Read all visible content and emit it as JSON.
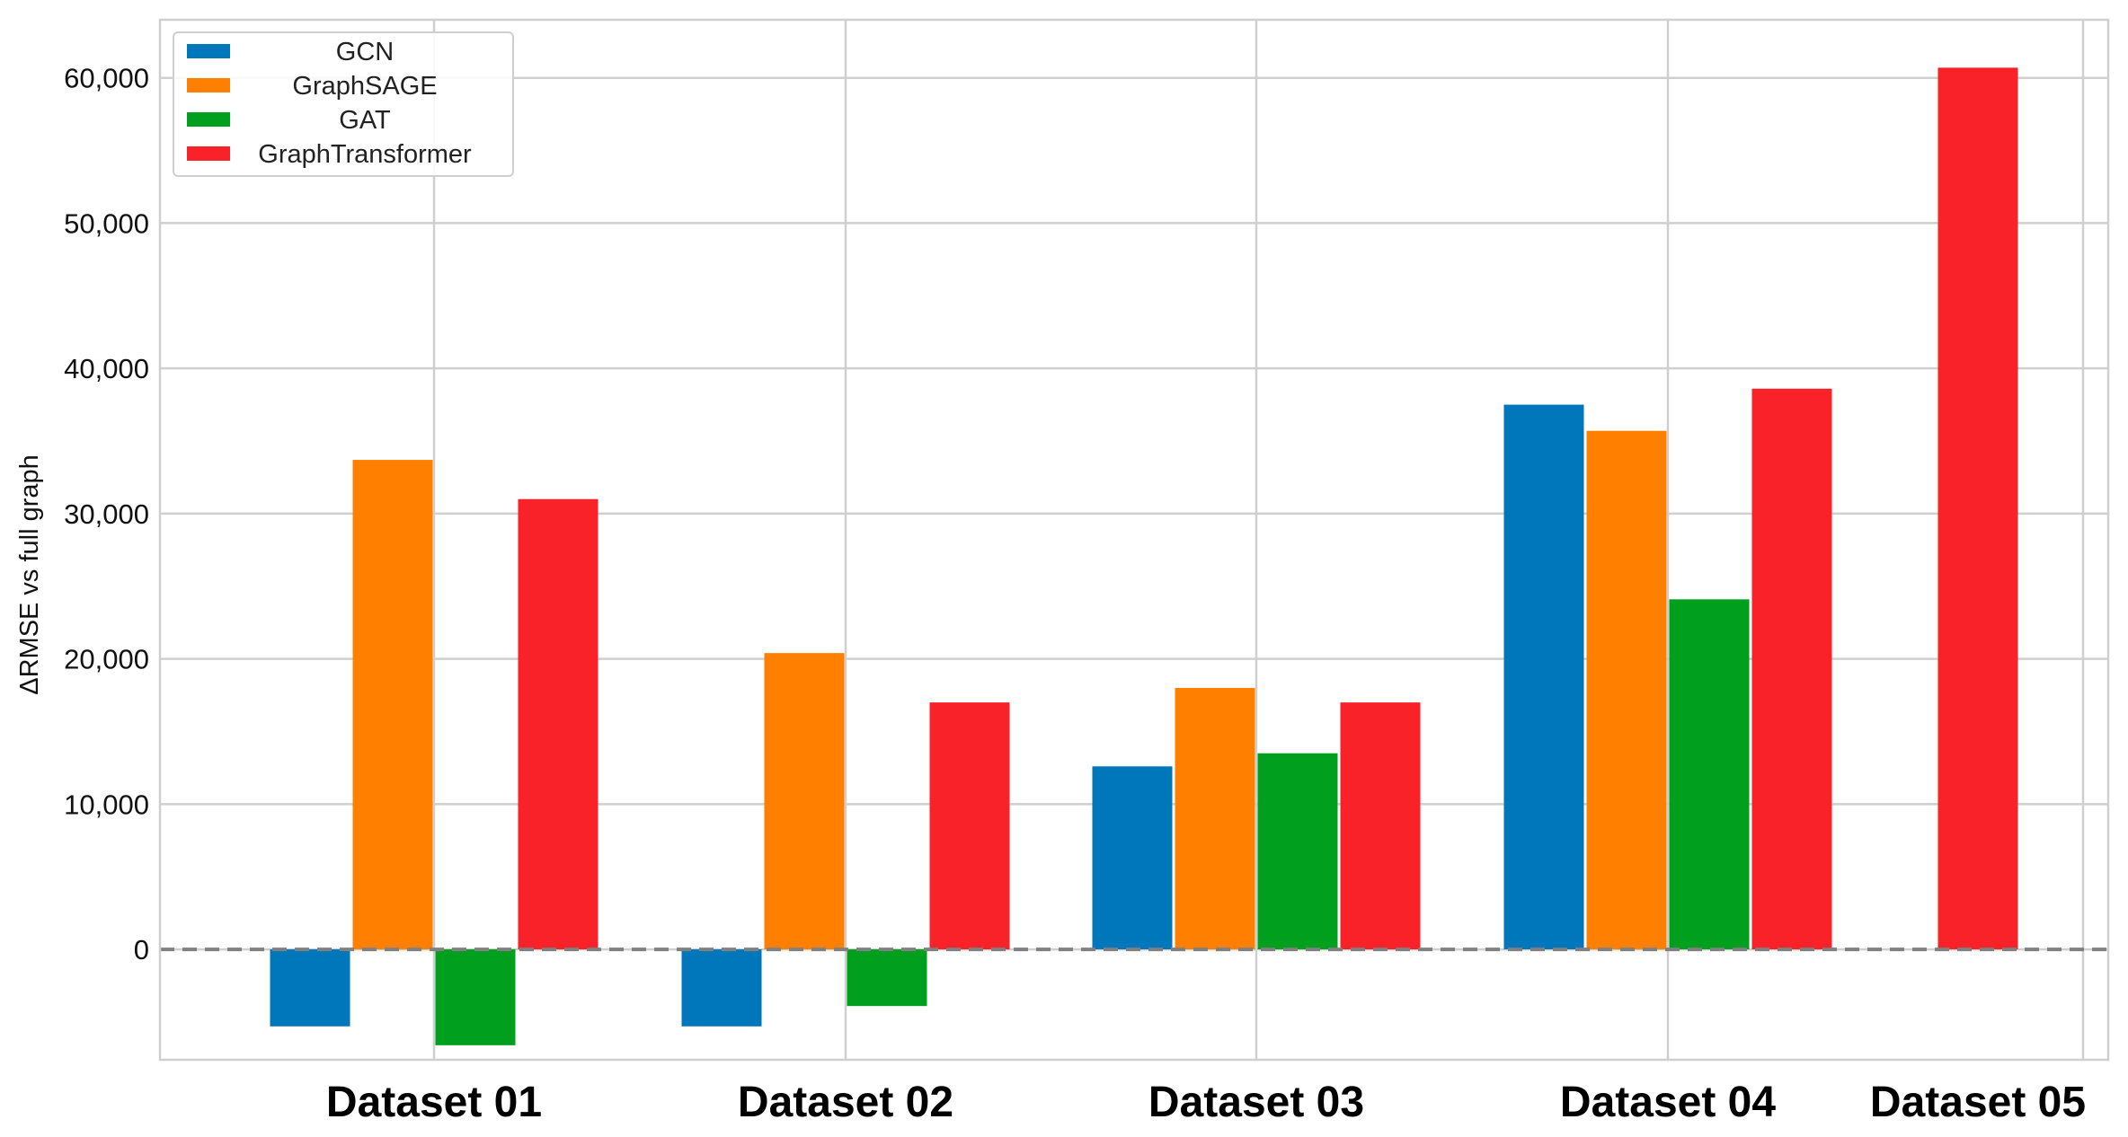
{
  "chart_data": {
    "type": "bar",
    "title": "",
    "xlabel": "",
    "ylabel": "ΔRMSE vs full graph",
    "categories": [
      "Dataset 01",
      "Dataset 02",
      "Dataset 03",
      "Dataset 04",
      "Dataset 05"
    ],
    "series": [
      {
        "name": "GCN",
        "color": "#0077bb",
        "values": [
          -5300,
          -5300,
          12600,
          37500,
          null
        ]
      },
      {
        "name": "GraphSAGE",
        "color": "#ff8000",
        "values": [
          33700,
          20400,
          18000,
          35700,
          null
        ]
      },
      {
        "name": "GAT",
        "color": "#00a01e",
        "values": [
          -6600,
          -3900,
          13500,
          24100,
          null
        ]
      },
      {
        "name": "GraphTransformer",
        "color": "#f82228",
        "values": [
          31000,
          17000,
          17000,
          38600,
          60700
        ]
      }
    ],
    "ylim": [
      -7600,
      64000
    ],
    "yticks": [
      0,
      10000,
      20000,
      30000,
      40000,
      50000,
      60000
    ],
    "ytick_labels": [
      "0",
      "10,000",
      "20,000",
      "30,000",
      "40,000",
      "50,000",
      "60,000"
    ],
    "reference_line": {
      "y": 0,
      "style": "dashed",
      "color": "#808080"
    },
    "grid": true,
    "legend": {
      "position": "top-left",
      "entries": [
        "GCN",
        "GraphSAGE",
        "GAT",
        "GraphTransformer"
      ]
    }
  }
}
